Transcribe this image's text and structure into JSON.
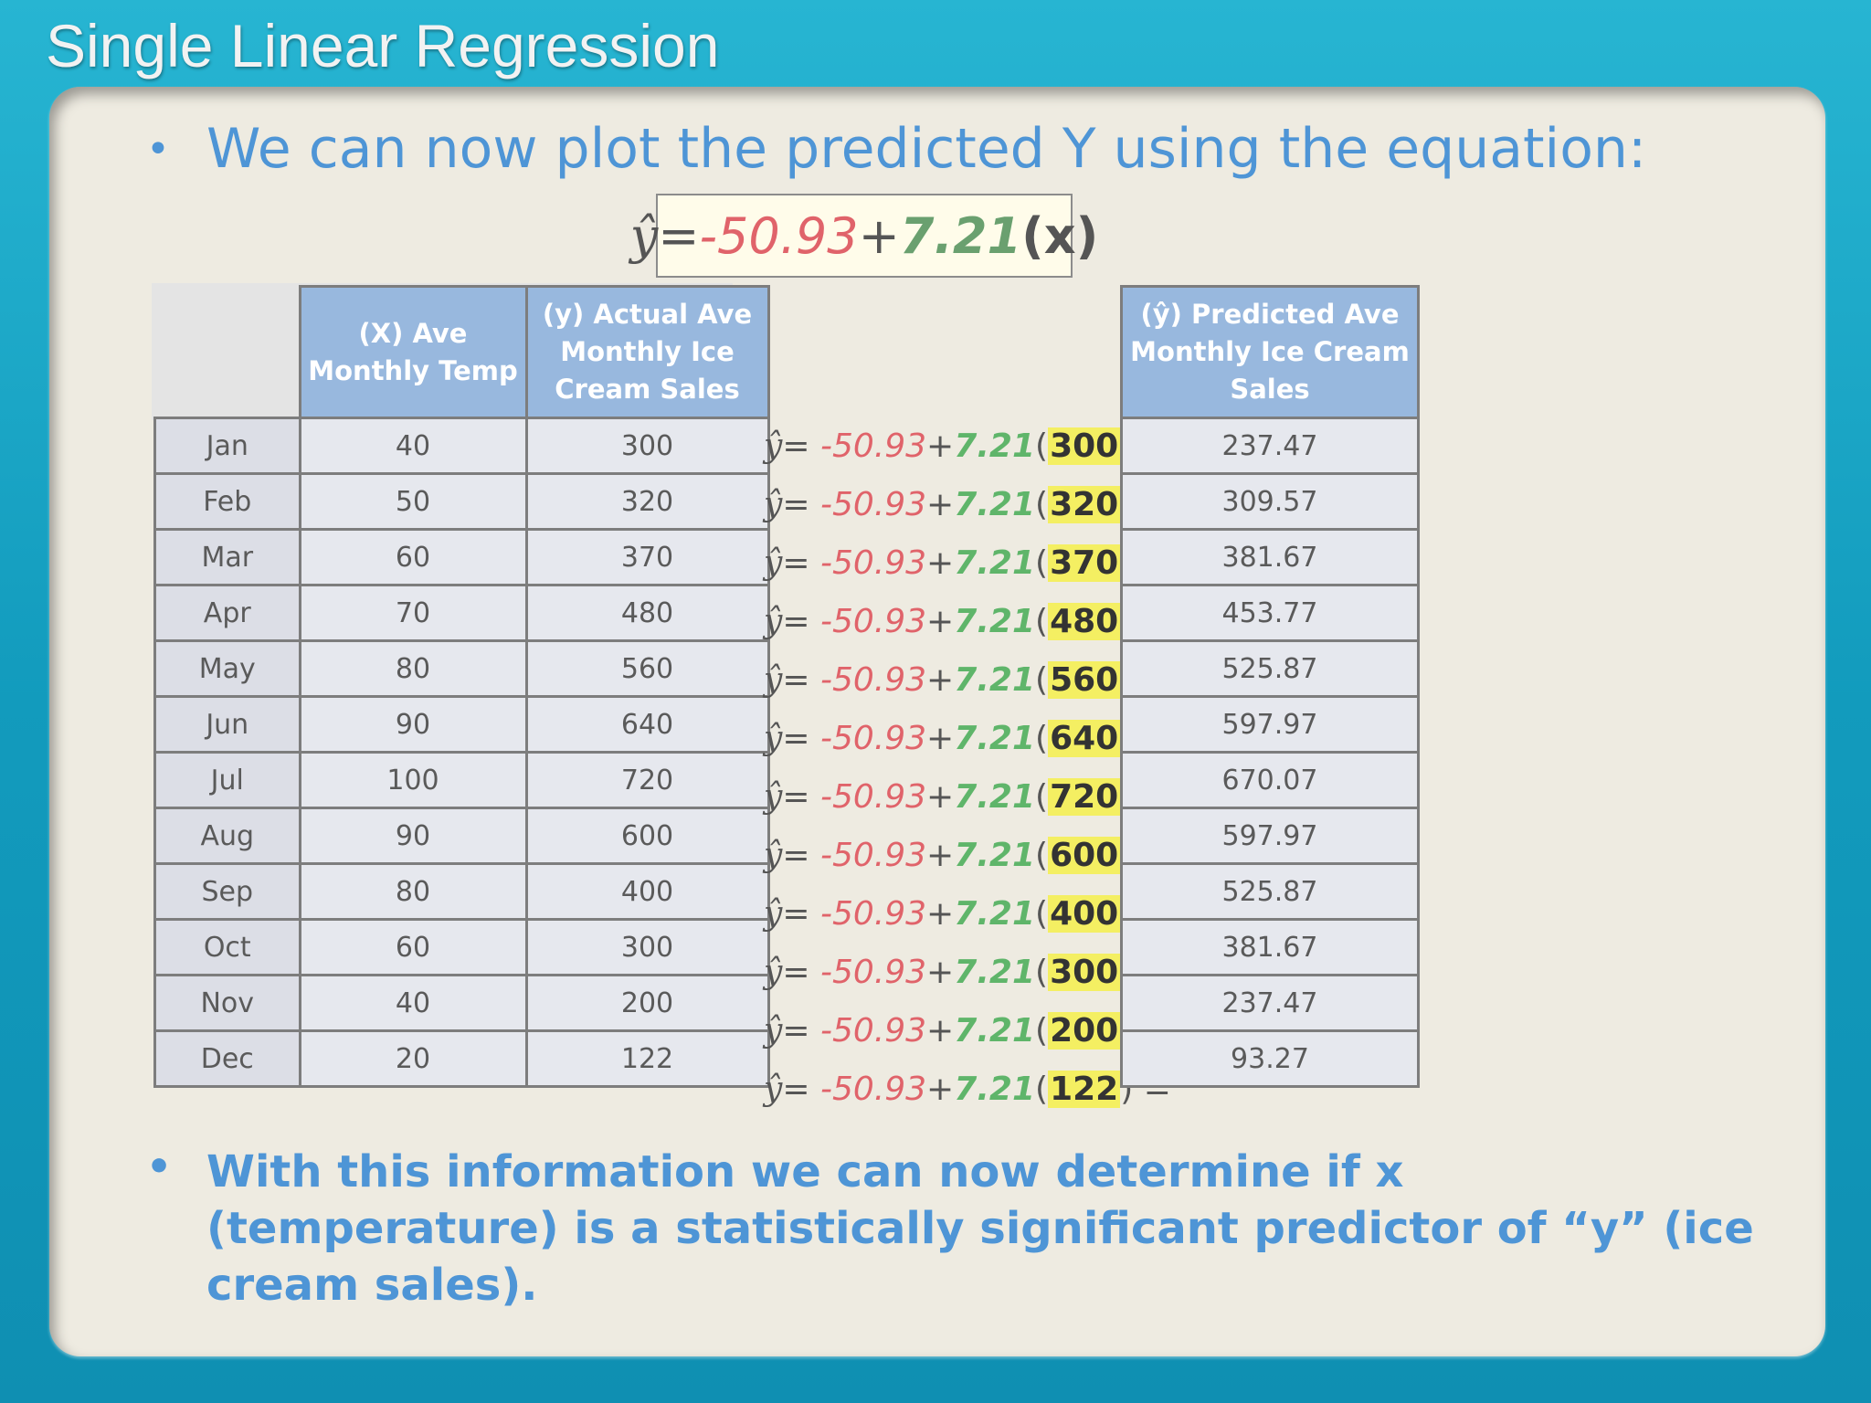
{
  "slide": {
    "title": "Single Linear Regression",
    "bullet1": "We can now plot the predicted Y using the equation:",
    "bullet2": "With this information we can now determine if x (temperature) is a statistically significant predictor of “y” (ice cream sales).",
    "bullet_glyph": "•"
  },
  "equation": {
    "yhat": "ŷ",
    "equals": "= ",
    "intercept": "-50.93",
    "plus": "+",
    "slope": "7.21",
    "x_term": "(x)"
  },
  "table": {
    "headers": {
      "x": "(X) Ave Monthly Temp",
      "y": "(y) Actual Ave Monthly Ice Cream Sales",
      "predicted": "(ŷ) Predicted Ave Monthly Ice Cream Sales"
    },
    "rows": [
      {
        "month": "Jan",
        "x": "40",
        "y": "300",
        "sub": "300",
        "pred": "237.47"
      },
      {
        "month": "Feb",
        "x": "50",
        "y": "320",
        "sub": "320",
        "pred": "309.57"
      },
      {
        "month": "Mar",
        "x": "60",
        "y": "370",
        "sub": "370",
        "pred": "381.67"
      },
      {
        "month": "Apr",
        "x": "70",
        "y": "480",
        "sub": "480",
        "pred": "453.77"
      },
      {
        "month": "May",
        "x": "80",
        "y": "560",
        "sub": "560",
        "pred": "525.87"
      },
      {
        "month": "Jun",
        "x": "90",
        "y": "640",
        "sub": "640",
        "pred": "597.97"
      },
      {
        "month": "Jul",
        "x": "100",
        "y": "720",
        "sub": "720",
        "pred": "670.07"
      },
      {
        "month": "Aug",
        "x": "90",
        "y": "600",
        "sub": "600",
        "pred": "597.97"
      },
      {
        "month": "Sep",
        "x": "80",
        "y": "400",
        "sub": "400",
        "pred": "525.87"
      },
      {
        "month": "Oct",
        "x": "60",
        "y": "300",
        "sub": "300",
        "pred": "381.67"
      },
      {
        "month": "Nov",
        "x": "40",
        "y": "200",
        "sub": "200",
        "pred": "237.47"
      },
      {
        "month": "Dec",
        "x": "20",
        "y": "122",
        "sub": "122",
        "pred": "93.27"
      }
    ]
  },
  "colors": {
    "accent_blue": "#4e95d6",
    "intercept_red": "#e0636a",
    "slope_green": "#5fb56a",
    "highlight_yellow": "#f4ef62",
    "header_blue": "#98b8de"
  }
}
